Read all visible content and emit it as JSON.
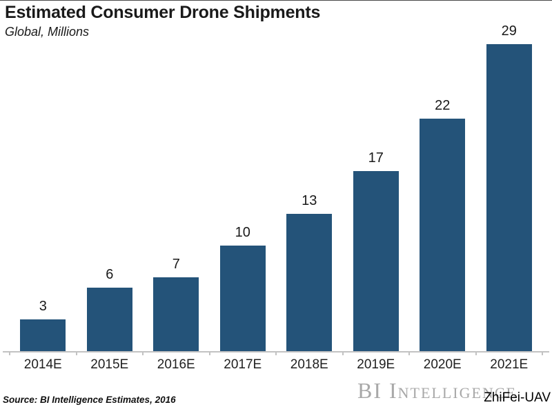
{
  "chart_data": {
    "type": "bar",
    "title": "Estimated Consumer Drone Shipments",
    "subtitle": "Global, Millions",
    "categories": [
      "2014E",
      "2015E",
      "2016E",
      "2017E",
      "2018E",
      "2019E",
      "2020E",
      "2021E"
    ],
    "values": [
      3,
      6,
      7,
      10,
      13,
      17,
      22,
      29
    ],
    "xlabel": "",
    "ylabel": "",
    "ylim": [
      0,
      30
    ],
    "grid": false,
    "legend": null,
    "value_labels_shown": true,
    "bar_color": "#245379"
  },
  "footer": {
    "source": "Source: BI Intelligence Estimates, 2016",
    "watermark": "BI Intelligence",
    "overlay_tag": "ZhiFei-UAV"
  },
  "colors": {
    "background": "#ffffff",
    "bar": "#245379",
    "axis": "#c2c2c2",
    "text": "#1a1a1a",
    "watermark": "#a8a8a8"
  }
}
